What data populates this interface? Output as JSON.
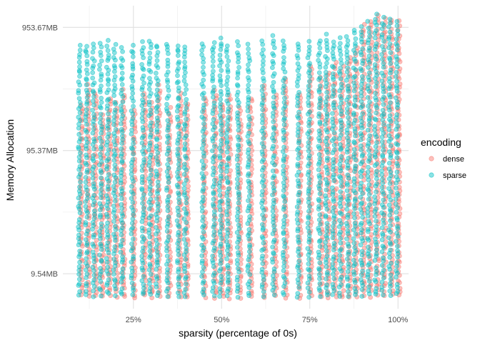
{
  "chart_data": {
    "type": "scatter",
    "title": "",
    "xlabel": "sparsity (percentage of 0s)",
    "ylabel": "Memory Allocation",
    "x_scale": "linear",
    "y_scale": "log",
    "xlim": [
      0.05,
      1.03
    ],
    "ylim_bytes": [
      5200000,
      1500000000
    ],
    "x_ticks": [
      {
        "value": 0.25,
        "label": "25%"
      },
      {
        "value": 0.5,
        "label": "50%"
      },
      {
        "value": 0.75,
        "label": "75%"
      },
      {
        "value": 1.0,
        "label": "100%"
      }
    ],
    "y_ticks": [
      {
        "value": 10000000,
        "label": "9.54MB"
      },
      {
        "value": 100000000,
        "label": "95.37MB"
      },
      {
        "value": 1000000000,
        "label": "953.67MB"
      }
    ],
    "grid": true,
    "legend": {
      "title": "encoding",
      "position": "right",
      "entries": [
        {
          "name": "dense",
          "color": "#F8766D"
        },
        {
          "name": "sparse",
          "color": "#00BFC4"
        }
      ]
    },
    "point_alpha": 0.45,
    "series": [
      {
        "name": "dense",
        "color": "#F8766D",
        "columns": [
          {
            "x": 0.1,
            "y_min": 6500000,
            "y_max": 250000000
          },
          {
            "x": 0.12,
            "y_min": 6400000,
            "y_max": 350000000
          },
          {
            "x": 0.14,
            "y_min": 6500000,
            "y_max": 300000000
          },
          {
            "x": 0.16,
            "y_min": 6300000,
            "y_max": 200000000
          },
          {
            "x": 0.18,
            "y_min": 6500000,
            "y_max": 280000000
          },
          {
            "x": 0.2,
            "y_min": 6400000,
            "y_max": 250000000
          },
          {
            "x": 0.22,
            "y_min": 6300000,
            "y_max": 320000000
          },
          {
            "x": 0.25,
            "y_min": 6200000,
            "y_max": 220000000
          },
          {
            "x": 0.28,
            "y_min": 6400000,
            "y_max": 300000000
          },
          {
            "x": 0.3,
            "y_min": 6300000,
            "y_max": 250000000
          },
          {
            "x": 0.32,
            "y_min": 6200000,
            "y_max": 350000000
          },
          {
            "x": 0.35,
            "y_min": 6300000,
            "y_max": 230000000
          },
          {
            "x": 0.38,
            "y_min": 6300000,
            "y_max": 300000000
          },
          {
            "x": 0.4,
            "y_min": 6200000,
            "y_max": 250000000
          },
          {
            "x": 0.45,
            "y_min": 6300000,
            "y_max": 280000000
          },
          {
            "x": 0.48,
            "y_min": 6200000,
            "y_max": 320000000
          },
          {
            "x": 0.5,
            "y_min": 6300000,
            "y_max": 250000000
          },
          {
            "x": 0.52,
            "y_min": 6200000,
            "y_max": 300000000
          },
          {
            "x": 0.55,
            "y_min": 6300000,
            "y_max": 230000000
          },
          {
            "x": 0.58,
            "y_min": 6200000,
            "y_max": 280000000
          },
          {
            "x": 0.62,
            "y_min": 6200000,
            "y_max": 350000000
          },
          {
            "x": 0.65,
            "y_min": 6300000,
            "y_max": 300000000
          },
          {
            "x": 0.68,
            "y_min": 6200000,
            "y_max": 400000000
          },
          {
            "x": 0.72,
            "y_min": 6200000,
            "y_max": 300000000
          },
          {
            "x": 0.75,
            "y_min": 6300000,
            "y_max": 500000000
          },
          {
            "x": 0.78,
            "y_min": 6200000,
            "y_max": 400000000
          },
          {
            "x": 0.8,
            "y_min": 6200000,
            "y_max": 450000000
          },
          {
            "x": 0.82,
            "y_min": 6300000,
            "y_max": 550000000
          },
          {
            "x": 0.84,
            "y_min": 6200000,
            "y_max": 500000000
          },
          {
            "x": 0.86,
            "y_min": 6300000,
            "y_max": 600000000
          },
          {
            "x": 0.88,
            "y_min": 6200000,
            "y_max": 700000000
          },
          {
            "x": 0.9,
            "y_min": 6300000,
            "y_max": 1100000000
          },
          {
            "x": 0.92,
            "y_min": 6400000,
            "y_max": 1200000000
          },
          {
            "x": 0.94,
            "y_min": 6500000,
            "y_max": 1300000000
          },
          {
            "x": 0.96,
            "y_min": 6600000,
            "y_max": 1250000000
          },
          {
            "x": 0.98,
            "y_min": 6500000,
            "y_max": 1200000000
          },
          {
            "x": 1.0,
            "y_min": 6400000,
            "y_max": 1150000000
          }
        ]
      },
      {
        "name": "sparse",
        "color": "#00BFC4",
        "columns": [
          {
            "x": 0.1,
            "y_min": 6600000,
            "y_max": 750000000
          },
          {
            "x": 0.12,
            "y_min": 6600000,
            "y_max": 750000000
          },
          {
            "x": 0.14,
            "y_min": 6500000,
            "y_max": 750000000
          },
          {
            "x": 0.16,
            "y_min": 6500000,
            "y_max": 760000000
          },
          {
            "x": 0.18,
            "y_min": 6600000,
            "y_max": 800000000
          },
          {
            "x": 0.2,
            "y_min": 6600000,
            "y_max": 760000000
          },
          {
            "x": 0.22,
            "y_min": 6500000,
            "y_max": 700000000
          },
          {
            "x": 0.25,
            "y_min": 6500000,
            "y_max": 740000000
          },
          {
            "x": 0.28,
            "y_min": 6500000,
            "y_max": 780000000
          },
          {
            "x": 0.3,
            "y_min": 6500000,
            "y_max": 820000000
          },
          {
            "x": 0.32,
            "y_min": 6500000,
            "y_max": 760000000
          },
          {
            "x": 0.35,
            "y_min": 6400000,
            "y_max": 780000000
          },
          {
            "x": 0.38,
            "y_min": 6400000,
            "y_max": 760000000
          },
          {
            "x": 0.4,
            "y_min": 6400000,
            "y_max": 740000000
          },
          {
            "x": 0.45,
            "y_min": 6400000,
            "y_max": 770000000
          },
          {
            "x": 0.48,
            "y_min": 6400000,
            "y_max": 800000000
          },
          {
            "x": 0.5,
            "y_min": 6400000,
            "y_max": 850000000
          },
          {
            "x": 0.52,
            "y_min": 6400000,
            "y_max": 760000000
          },
          {
            "x": 0.55,
            "y_min": 6400000,
            "y_max": 780000000
          },
          {
            "x": 0.58,
            "y_min": 6400000,
            "y_max": 760000000
          },
          {
            "x": 0.62,
            "y_min": 6400000,
            "y_max": 800000000
          },
          {
            "x": 0.65,
            "y_min": 6400000,
            "y_max": 880000000
          },
          {
            "x": 0.68,
            "y_min": 6400000,
            "y_max": 820000000
          },
          {
            "x": 0.72,
            "y_min": 6400000,
            "y_max": 780000000
          },
          {
            "x": 0.75,
            "y_min": 6400000,
            "y_max": 800000000
          },
          {
            "x": 0.78,
            "y_min": 6400000,
            "y_max": 830000000
          },
          {
            "x": 0.8,
            "y_min": 6400000,
            "y_max": 900000000
          },
          {
            "x": 0.82,
            "y_min": 6400000,
            "y_max": 820000000
          },
          {
            "x": 0.84,
            "y_min": 6400000,
            "y_max": 850000000
          },
          {
            "x": 0.86,
            "y_min": 6400000,
            "y_max": 900000000
          },
          {
            "x": 0.88,
            "y_min": 6400000,
            "y_max": 1000000000
          },
          {
            "x": 0.9,
            "y_min": 6500000,
            "y_max": 1050000000
          },
          {
            "x": 0.92,
            "y_min": 6500000,
            "y_max": 1150000000
          },
          {
            "x": 0.94,
            "y_min": 6500000,
            "y_max": 1350000000
          },
          {
            "x": 0.96,
            "y_min": 6600000,
            "y_max": 1250000000
          },
          {
            "x": 0.98,
            "y_min": 6600000,
            "y_max": 1200000000
          },
          {
            "x": 1.0,
            "y_min": 6500000,
            "y_max": 1150000000
          }
        ]
      }
    ]
  }
}
